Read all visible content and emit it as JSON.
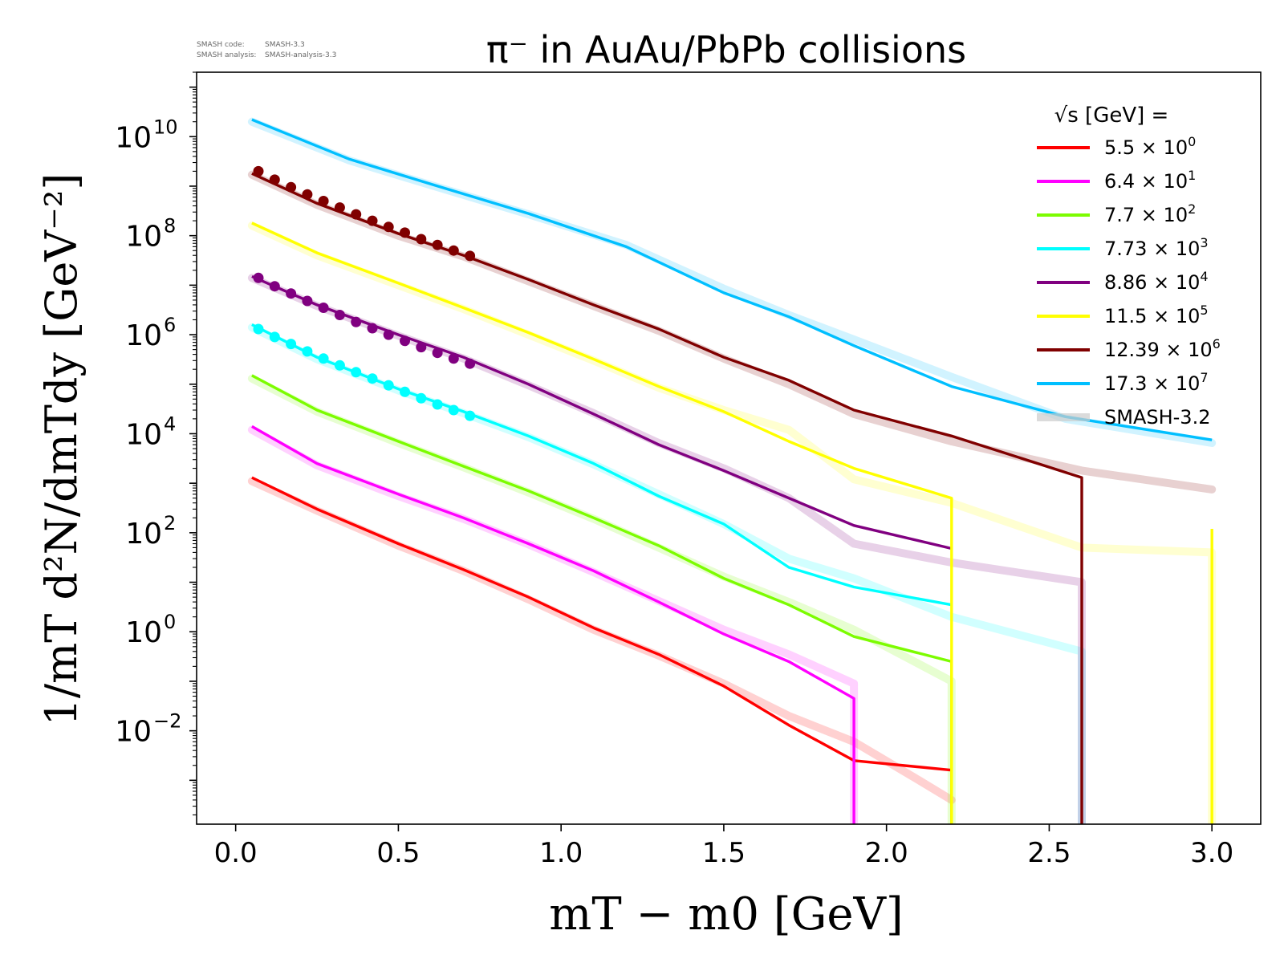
{
  "header": {
    "code_label": "SMASH code:",
    "code_version": "SMASH-3.3",
    "analysis_label": "SMASH analysis:",
    "analysis_version": "SMASH-analysis-3.3"
  },
  "chart_data": {
    "type": "line",
    "title": "π⁻ in AuAu/PbPb collisions",
    "xlabel": "mT − m0 [GeV]",
    "ylabel": "1/mT d²N/dmTdy [GeV⁻²]",
    "yscale": "log",
    "xlim": [
      -0.12,
      3.15
    ],
    "ylim": [
      0.00013,
      200000000000
    ],
    "x_ticks": [
      {
        "value": 0.0,
        "label": "0.0"
      },
      {
        "value": 0.5,
        "label": "0.5"
      },
      {
        "value": 1.0,
        "label": "1.0"
      },
      {
        "value": 1.5,
        "label": "1.5"
      },
      {
        "value": 2.0,
        "label": "2.0"
      },
      {
        "value": 2.5,
        "label": "2.5"
      },
      {
        "value": 3.0,
        "label": "3.0"
      }
    ],
    "y_ticks": [
      {
        "exp": -2,
        "base": "10",
        "sup": "−2"
      },
      {
        "exp": 0,
        "base": "10",
        "sup": "0"
      },
      {
        "exp": 2,
        "base": "10",
        "sup": "2"
      },
      {
        "exp": 4,
        "base": "10",
        "sup": "4"
      },
      {
        "exp": 6,
        "base": "10",
        "sup": "6"
      },
      {
        "exp": 8,
        "base": "10",
        "sup": "8"
      },
      {
        "exp": 10,
        "base": "10",
        "sup": "10"
      }
    ],
    "legend": {
      "title": "√s  [GeV] =",
      "position": "top-right",
      "entries": [
        {
          "mant": "5.5",
          "times": "×",
          "base": "10",
          "sup": "0",
          "color": "#ff0000"
        },
        {
          "mant": "6.4",
          "times": "×",
          "base": "10",
          "sup": "1",
          "color": "#ff00ff"
        },
        {
          "mant": "7.7",
          "times": "×",
          "base": "10",
          "sup": "2",
          "color": "#7cfc00"
        },
        {
          "mant": "7.73",
          "times": "×",
          "base": "10",
          "sup": "3",
          "color": "#00ffff"
        },
        {
          "mant": "8.86",
          "times": "×",
          "base": "10",
          "sup": "4",
          "color": "#800080"
        },
        {
          "mant": "11.5",
          "times": "×",
          "base": "10",
          "sup": "5",
          "color": "#ffff00"
        },
        {
          "mant": "12.39",
          "times": "×",
          "base": "10",
          "sup": "6",
          "color": "#800000"
        },
        {
          "mant": "17.3",
          "times": "×",
          "base": "10",
          "sup": "7",
          "color": "#00bfff"
        }
      ],
      "reference_label": "SMASH-3.2",
      "reference_color": "#cccccc"
    },
    "series": [
      {
        "name": "5.5 × 10^0",
        "color": "#ff0000",
        "x": [
          0.05,
          0.25,
          0.5,
          0.7,
          0.9,
          1.1,
          1.3,
          1.5,
          1.7,
          1.9,
          2.2,
          2.2
        ],
        "y": [
          1300,
          300,
          60,
          18,
          5,
          1.2,
          0.35,
          0.08,
          0.013,
          0.0025,
          0.0016,
          0.0001
        ],
        "ref_x": [
          0.05,
          0.25,
          0.5,
          0.7,
          0.9,
          1.1,
          1.3,
          1.5,
          1.7,
          1.9,
          2.1,
          2.2
        ],
        "ref_y": [
          1100,
          280,
          55,
          17,
          4.5,
          1.1,
          0.33,
          0.09,
          0.02,
          0.006,
          0.001,
          0.0004
        ]
      },
      {
        "name": "6.4 × 10^1",
        "color": "#ff00ff",
        "x": [
          0.05,
          0.25,
          0.5,
          0.7,
          0.9,
          1.1,
          1.3,
          1.5,
          1.7,
          1.9,
          1.9
        ],
        "y": [
          14000,
          2500,
          600,
          200,
          60,
          17,
          4,
          0.9,
          0.25,
          0.045,
          0.0001
        ],
        "ref_x": [
          0.05,
          0.25,
          0.5,
          0.7,
          0.9,
          1.1,
          1.3,
          1.5,
          1.7,
          1.9,
          1.9
        ],
        "ref_y": [
          12000,
          2300,
          550,
          190,
          58,
          16,
          4.2,
          1.1,
          0.35,
          0.09,
          0.0001
        ]
      },
      {
        "name": "7.7 × 10^2",
        "color": "#7cfc00",
        "x": [
          0.05,
          0.25,
          0.5,
          0.7,
          0.9,
          1.1,
          1.3,
          1.5,
          1.7,
          1.9,
          2.2,
          2.2
        ],
        "y": [
          150000,
          30000,
          7000,
          2200,
          700,
          200,
          55,
          12,
          3.5,
          0.8,
          0.25,
          0.0001
        ],
        "ref_x": [
          0.05,
          0.25,
          0.5,
          0.7,
          0.9,
          1.1,
          1.3,
          1.5,
          1.7,
          1.9,
          2.2,
          2.2
        ],
        "ref_y": [
          130000,
          28000,
          6500,
          2100,
          650,
          190,
          50,
          13,
          4,
          1.1,
          0.1,
          0.0001
        ]
      },
      {
        "name": "7.73 × 10^3",
        "color": "#00ffff",
        "x": [
          0.05,
          0.25,
          0.5,
          0.7,
          0.9,
          1.1,
          1.3,
          1.5,
          1.7,
          1.9,
          2.2
        ],
        "y": [
          1600000,
          350000,
          80000,
          28000,
          9000,
          2500,
          550,
          150,
          20,
          8,
          3.5
        ],
        "ref_x": [
          0.05,
          0.25,
          0.5,
          0.7,
          0.9,
          1.1,
          1.3,
          1.5,
          1.7,
          1.9,
          2.2,
          2.6,
          2.6
        ],
        "ref_y": [
          1400000,
          320000,
          75000,
          26000,
          8500,
          2400,
          600,
          150,
          30,
          12,
          2,
          0.4,
          0.0001
        ],
        "points_x": [
          0.07,
          0.12,
          0.17,
          0.22,
          0.27,
          0.32,
          0.37,
          0.42,
          0.47,
          0.52,
          0.57,
          0.62,
          0.67,
          0.72
        ],
        "points_y": [
          1300000,
          900000,
          650000,
          460000,
          330000,
          240000,
          175000,
          130000,
          95000,
          70000,
          52000,
          39000,
          30000,
          23000
        ]
      },
      {
        "name": "8.86 × 10^4",
        "color": "#800080",
        "x": [
          0.05,
          0.25,
          0.5,
          0.7,
          0.9,
          1.1,
          1.3,
          1.5,
          1.7,
          1.9,
          2.2
        ],
        "y": [
          15000000,
          4000000,
          1000000,
          350000,
          100000,
          25000,
          6000,
          1800,
          500,
          140,
          48
        ],
        "ref_x": [
          0.05,
          0.25,
          0.5,
          0.7,
          0.9,
          1.1,
          1.3,
          1.5,
          1.7,
          1.9,
          2.2,
          2.6,
          2.6
        ],
        "ref_y": [
          14000000,
          3800000,
          950000,
          330000,
          95000,
          26000,
          6500,
          2000,
          500,
          60,
          25,
          10,
          0.0001
        ],
        "points_x": [
          0.07,
          0.12,
          0.17,
          0.22,
          0.27,
          0.32,
          0.37,
          0.42,
          0.47,
          0.52,
          0.57,
          0.62,
          0.67,
          0.72
        ],
        "points_y": [
          14000000,
          9500000,
          6800000,
          4800000,
          3500000,
          2500000,
          1800000,
          1350000,
          1000000,
          750000,
          560000,
          430000,
          330000,
          260000
        ]
      },
      {
        "name": "11.5 × 10^5",
        "color": "#ffff00",
        "x": [
          0.05,
          0.25,
          0.5,
          0.7,
          0.9,
          1.1,
          1.3,
          1.5,
          1.7,
          1.9,
          2.2,
          2.2
        ],
        "y": [
          180000000,
          45000000,
          11000000,
          3500000,
          1100000,
          320000,
          90000,
          28000,
          7000,
          2000,
          500,
          0.0001
        ],
        "ref_x": [
          0.05,
          0.25,
          0.5,
          0.7,
          0.9,
          1.1,
          1.3,
          1.5,
          1.7,
          1.9,
          2.2,
          2.6,
          3.0,
          3.0
        ],
        "ref_y": [
          160000000,
          40000000,
          10000000,
          3300000,
          1000000,
          300000,
          85000,
          30000,
          12000,
          1200,
          400,
          50,
          40,
          0.0001
        ],
        "tail_x": [
          3.0,
          3.0
        ],
        "tail_y": [
          0.0001,
          120
        ]
      },
      {
        "name": "12.39 × 10^6",
        "color": "#800000",
        "x": [
          0.05,
          0.25,
          0.5,
          0.7,
          0.9,
          1.1,
          1.3,
          1.5,
          1.7,
          1.9,
          2.2,
          2.6,
          2.6
        ],
        "y": [
          1800000000,
          450000000,
          110000000,
          40000000,
          13000000,
          4000000,
          1300000,
          350000,
          120000,
          30000,
          9000,
          1300,
          0.0001
        ],
        "ref_x": [
          0.05,
          0.25,
          0.5,
          0.7,
          0.9,
          1.1,
          1.3,
          1.5,
          1.7,
          1.9,
          2.2,
          2.6,
          3.0
        ],
        "ref_y": [
          1700000000,
          420000000,
          100000000,
          38000000,
          12000000,
          3800000,
          1200000,
          330000,
          100000,
          25000,
          7000,
          1800,
          750
        ],
        "points_x": [
          0.07,
          0.12,
          0.17,
          0.22,
          0.27,
          0.32,
          0.37,
          0.42,
          0.47,
          0.52,
          0.57,
          0.62,
          0.67,
          0.72
        ],
        "points_y": [
          2000000000,
          1350000000,
          950000000,
          680000000,
          500000000,
          370000000,
          270000000,
          200000000,
          150000000,
          115000000,
          85000000,
          65000000,
          50000000,
          39000000
        ]
      },
      {
        "name": "17.3 × 10^7",
        "color": "#00bfff",
        "x": [
          0.05,
          0.35,
          0.6,
          0.9,
          1.2,
          1.5,
          1.7,
          1.9,
          2.2,
          2.55,
          3.0
        ],
        "y": [
          22000000000,
          3500000000,
          1100000000,
          280000000,
          60000000,
          7000000,
          2300000,
          600000,
          90000,
          22000,
          7500
        ],
        "ref_x": [
          0.05,
          0.35,
          0.6,
          0.9,
          1.2,
          1.5,
          1.7,
          1.9,
          2.2,
          2.55,
          3.0
        ],
        "ref_y": [
          20000000000,
          3300000000,
          1050000000,
          270000000,
          65000000,
          8500000,
          2500000,
          800000,
          140000,
          20000,
          6500
        ]
      }
    ]
  }
}
